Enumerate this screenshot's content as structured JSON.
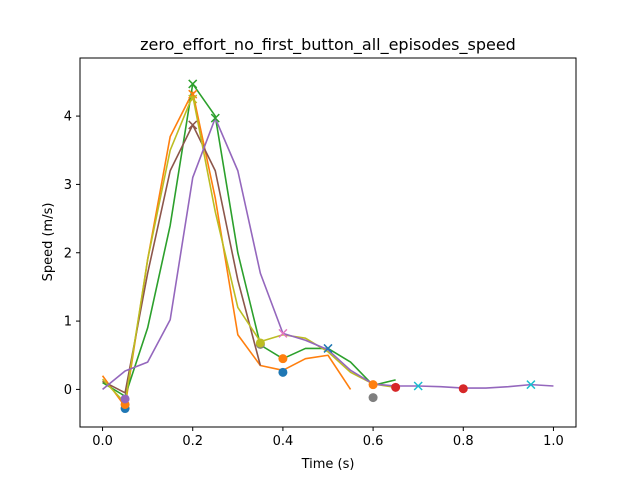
{
  "chart_data": {
    "type": "line",
    "title": "zero_effort_no_first_button_all_episodes_speed",
    "xlabel": "Time (s)",
    "ylabel": "Speed (m/s)",
    "xlim": [
      -0.05,
      1.05
    ],
    "ylim": [
      -0.55,
      4.85
    ],
    "xticks": [
      0.0,
      0.2,
      0.4,
      0.6,
      0.8,
      1.0
    ],
    "xtick_labels": [
      "0.0",
      "0.2",
      "0.4",
      "0.6",
      "0.8",
      "1.0"
    ],
    "yticks": [
      0,
      1,
      2,
      3,
      4
    ],
    "ytick_labels": [
      "0",
      "1",
      "2",
      "3",
      "4"
    ],
    "grid": false,
    "series": [
      {
        "color": "#ff7f0e",
        "x": [
          0.0,
          0.05,
          0.1,
          0.15,
          0.2,
          0.25,
          0.3,
          0.35,
          0.4,
          0.45,
          0.5,
          0.55
        ],
        "y": [
          0.2,
          -0.25,
          1.9,
          3.7,
          4.35,
          2.8,
          0.8,
          0.35,
          0.28,
          0.45,
          0.5,
          0.0
        ]
      },
      {
        "color": "#2ca02c",
        "x": [
          0.0,
          0.05,
          0.1,
          0.15,
          0.2,
          0.25,
          0.3,
          0.35,
          0.4,
          0.45,
          0.5,
          0.55,
          0.6,
          0.65
        ],
        "y": [
          0.1,
          -0.1,
          0.9,
          2.4,
          4.47,
          4.0,
          2.0,
          0.65,
          0.45,
          0.6,
          0.6,
          0.4,
          0.06,
          0.14
        ]
      },
      {
        "color": "#8c564b",
        "x": [
          0.0,
          0.05,
          0.1,
          0.15,
          0.2,
          0.25,
          0.3,
          0.35
        ],
        "y": [
          0.12,
          -0.05,
          1.7,
          3.2,
          3.87,
          3.2,
          1.6,
          0.35
        ]
      },
      {
        "color": "#bcbd22",
        "x": [
          0.0,
          0.05,
          0.1,
          0.15,
          0.2,
          0.25,
          0.3,
          0.35,
          0.4,
          0.45,
          0.5,
          0.55,
          0.6,
          0.65
        ],
        "y": [
          0.15,
          -0.2,
          1.9,
          3.5,
          4.3,
          2.6,
          1.2,
          0.7,
          0.8,
          0.75,
          0.55,
          0.25,
          0.08,
          0.03
        ]
      },
      {
        "color": "#9467bd",
        "x": [
          0.0,
          0.05,
          0.1,
          0.15,
          0.2,
          0.25,
          0.3,
          0.35,
          0.4,
          0.45,
          0.5,
          0.55,
          0.6,
          0.65,
          0.7,
          0.75,
          0.8,
          0.85,
          0.9,
          0.95,
          1.0
        ],
        "y": [
          0.0,
          0.27,
          0.4,
          1.02,
          3.1,
          3.97,
          3.2,
          1.7,
          0.82,
          0.72,
          0.58,
          0.28,
          0.08,
          0.05,
          0.05,
          0.04,
          0.02,
          0.02,
          0.04,
          0.07,
          0.05
        ]
      }
    ],
    "markers": [
      {
        "shape": "circle",
        "color": "#1f77b4",
        "x": 0.05,
        "y": -0.28
      },
      {
        "shape": "circle",
        "color": "#ff7f0e",
        "x": 0.05,
        "y": -0.22
      },
      {
        "shape": "circle",
        "color": "#9467bd",
        "x": 0.05,
        "y": -0.14
      },
      {
        "shape": "x",
        "color": "#2ca02c",
        "x": 0.2,
        "y": 4.47
      },
      {
        "shape": "x",
        "color": "#ff7f0e",
        "x": 0.2,
        "y": 4.32
      },
      {
        "shape": "x",
        "color": "#bcbd22",
        "x": 0.2,
        "y": 4.25
      },
      {
        "shape": "x",
        "color": "#8c564b",
        "x": 0.2,
        "y": 3.87
      },
      {
        "shape": "x",
        "color": "#2ca02c",
        "x": 0.25,
        "y": 3.97
      },
      {
        "shape": "circle",
        "color": "#7f7f7f",
        "x": 0.35,
        "y": 0.66
      },
      {
        "shape": "circle",
        "color": "#bcbd22",
        "x": 0.35,
        "y": 0.68
      },
      {
        "shape": "circle",
        "color": "#1f77b4",
        "x": 0.4,
        "y": 0.25
      },
      {
        "shape": "circle",
        "color": "#ff7f0e",
        "x": 0.4,
        "y": 0.45
      },
      {
        "shape": "x",
        "color": "#e377c2",
        "x": 0.4,
        "y": 0.82
      },
      {
        "shape": "x",
        "color": "#1f77b4",
        "x": 0.5,
        "y": 0.6
      },
      {
        "shape": "circle",
        "color": "#7f7f7f",
        "x": 0.6,
        "y": -0.12
      },
      {
        "shape": "circle",
        "color": "#ff7f0e",
        "x": 0.6,
        "y": 0.07
      },
      {
        "shape": "circle",
        "color": "#d62728",
        "x": 0.65,
        "y": 0.03
      },
      {
        "shape": "x",
        "color": "#17becf",
        "x": 0.7,
        "y": 0.05
      },
      {
        "shape": "circle",
        "color": "#d62728",
        "x": 0.8,
        "y": 0.01
      },
      {
        "shape": "x",
        "color": "#17becf",
        "x": 0.95,
        "y": 0.07
      }
    ]
  }
}
